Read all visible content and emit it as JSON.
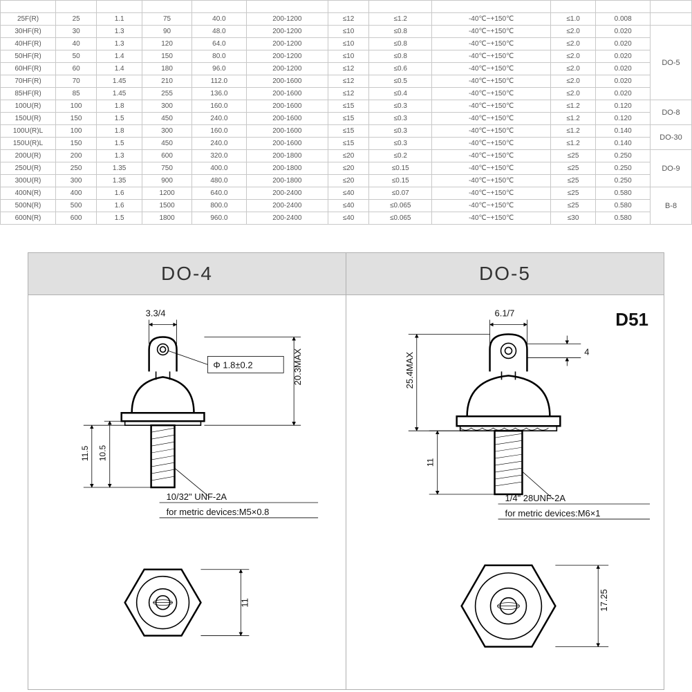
{
  "table": {
    "rows": [
      {
        "part": "25F(R)",
        "c1": "25",
        "c2": "1.1",
        "c3": "75",
        "c4": "40.0",
        "c5": "200-1200",
        "c6": "≤12",
        "c7": "≤1.2",
        "c8": "-40℃~+150℃",
        "c9": "≤1.0",
        "c10": "0.008",
        "pkg": null
      },
      {
        "part": "30HF(R)",
        "c1": "30",
        "c2": "1.3",
        "c3": "90",
        "c4": "48.0",
        "c5": "200-1200",
        "c6": "≤10",
        "c7": "≤0.8",
        "c8": "-40℃~+150℃",
        "c9": "≤2.0",
        "c10": "0.020",
        "pkg": null
      },
      {
        "part": "40HF(R)",
        "c1": "40",
        "c2": "1.3",
        "c3": "120",
        "c4": "64.0",
        "c5": "200-1200",
        "c6": "≤10",
        "c7": "≤0.8",
        "c8": "-40℃~+150℃",
        "c9": "≤2.0",
        "c10": "0.020",
        "pkg": null
      },
      {
        "part": "50HF(R)",
        "c1": "50",
        "c2": "1.4",
        "c3": "150",
        "c4": "80.0",
        "c5": "200-1200",
        "c6": "≤10",
        "c7": "≤0.8",
        "c8": "-40℃~+150℃",
        "c9": "≤2.0",
        "c10": "0.020",
        "pkg": "DO-5"
      },
      {
        "part": "60HF(R)",
        "c1": "60",
        "c2": "1.4",
        "c3": "180",
        "c4": "96.0",
        "c5": "200-1200",
        "c6": "≤12",
        "c7": "≤0.6",
        "c8": "-40℃~+150℃",
        "c9": "≤2.0",
        "c10": "0.020",
        "pkg": null
      },
      {
        "part": "70HF(R)",
        "c1": "70",
        "c2": "1.45",
        "c3": "210",
        "c4": "112.0",
        "c5": "200-1600",
        "c6": "≤12",
        "c7": "≤0.5",
        "c8": "-40℃~+150℃",
        "c9": "≤2.0",
        "c10": "0.020",
        "pkg": null
      },
      {
        "part": "85HF(R)",
        "c1": "85",
        "c2": "1.45",
        "c3": "255",
        "c4": "136.0",
        "c5": "200-1600",
        "c6": "≤12",
        "c7": "≤0.4",
        "c8": "-40℃~+150℃",
        "c9": "≤2.0",
        "c10": "0.020",
        "pkg": null
      },
      {
        "part": "100U(R)",
        "c1": "100",
        "c2": "1.8",
        "c3": "300",
        "c4": "160.0",
        "c5": "200-1600",
        "c6": "≤15",
        "c7": "≤0.3",
        "c8": "-40℃~+150℃",
        "c9": "≤1.2",
        "c10": "0.120",
        "pkg": "DO-8"
      },
      {
        "part": "150U(R)",
        "c1": "150",
        "c2": "1.5",
        "c3": "450",
        "c4": "240.0",
        "c5": "200-1600",
        "c6": "≤15",
        "c7": "≤0.3",
        "c8": "-40℃~+150℃",
        "c9": "≤1.2",
        "c10": "0.120",
        "pkg": null
      },
      {
        "part": "100U(R)L",
        "c1": "100",
        "c2": "1.8",
        "c3": "300",
        "c4": "160.0",
        "c5": "200-1600",
        "c6": "≤15",
        "c7": "≤0.3",
        "c8": "-40℃~+150℃",
        "c9": "≤1.2",
        "c10": "0.140",
        "pkg": "DO-30"
      },
      {
        "part": "150U(R)L",
        "c1": "150",
        "c2": "1.5",
        "c3": "450",
        "c4": "240.0",
        "c5": "200-1600",
        "c6": "≤15",
        "c7": "≤0.3",
        "c8": "-40℃~+150℃",
        "c9": "≤1.2",
        "c10": "0.140",
        "pkg": null
      },
      {
        "part": "200U(R)",
        "c1": "200",
        "c2": "1.3",
        "c3": "600",
        "c4": "320.0",
        "c5": "200-1800",
        "c6": "≤20",
        "c7": "≤0.2",
        "c8": "-40℃~+150℃",
        "c9": "≤25",
        "c10": "0.250",
        "pkg": null
      },
      {
        "part": "250U(R)",
        "c1": "250",
        "c2": "1.35",
        "c3": "750",
        "c4": "400.0",
        "c5": "200-1800",
        "c6": "≤20",
        "c7": "≤0.15",
        "c8": "-40℃~+150℃",
        "c9": "≤25",
        "c10": "0.250",
        "pkg": "DO-9"
      },
      {
        "part": "300U(R)",
        "c1": "300",
        "c2": "1.35",
        "c3": "900",
        "c4": "480.0",
        "c5": "200-1800",
        "c6": "≤20",
        "c7": "≤0.15",
        "c8": "-40℃~+150℃",
        "c9": "≤25",
        "c10": "0.250",
        "pkg": null
      },
      {
        "part": "400N(R)",
        "c1": "400",
        "c2": "1.6",
        "c3": "1200",
        "c4": "640.0",
        "c5": "200-2400",
        "c6": "≤40",
        "c7": "≤0.07",
        "c8": "-40℃~+150℃",
        "c9": "≤25",
        "c10": "0.580",
        "pkg": null
      },
      {
        "part": "500N(R)",
        "c1": "500",
        "c2": "1.6",
        "c3": "1500",
        "c4": "800.0",
        "c5": "200-2400",
        "c6": "≤40",
        "c7": "≤0.065",
        "c8": "-40℃~+150℃",
        "c9": "≤25",
        "c10": "0.580",
        "pkg": "B-8"
      },
      {
        "part": "600N(R)",
        "c1": "600",
        "c2": "1.5",
        "c3": "1800",
        "c4": "960.0",
        "c5": "200-2400",
        "c6": "≤40",
        "c7": "≤0.065",
        "c8": "-40℃~+150℃",
        "c9": "≤30",
        "c10": "0.580",
        "pkg": null
      }
    ],
    "pkg_spans": {
      "1": 1,
      "2": 6,
      "8": 2,
      "10": 2,
      "12": 3,
      "15": 3
    }
  },
  "diagrams": {
    "left": {
      "title": "DO-4",
      "top_dim": "3.3/4",
      "hole_dia": "Φ 1.8±0.2",
      "height_max": "20.3MAX",
      "stud_h1": "11.5",
      "stud_h2": "10.5",
      "thread": "10/32\" UNF-2A",
      "metric": "for metric devices:M5×0.8",
      "hex_af": "11"
    },
    "right": {
      "title": "DO-5",
      "corner": "D51",
      "top_dim": "6.1/7",
      "hole_h": "4",
      "height_max": "25.4MAX",
      "stud_h1": "11",
      "thread": "1/4\" 28UNF-2A",
      "metric": "for metric devices:M6×1",
      "hex_af": "17.25"
    }
  }
}
